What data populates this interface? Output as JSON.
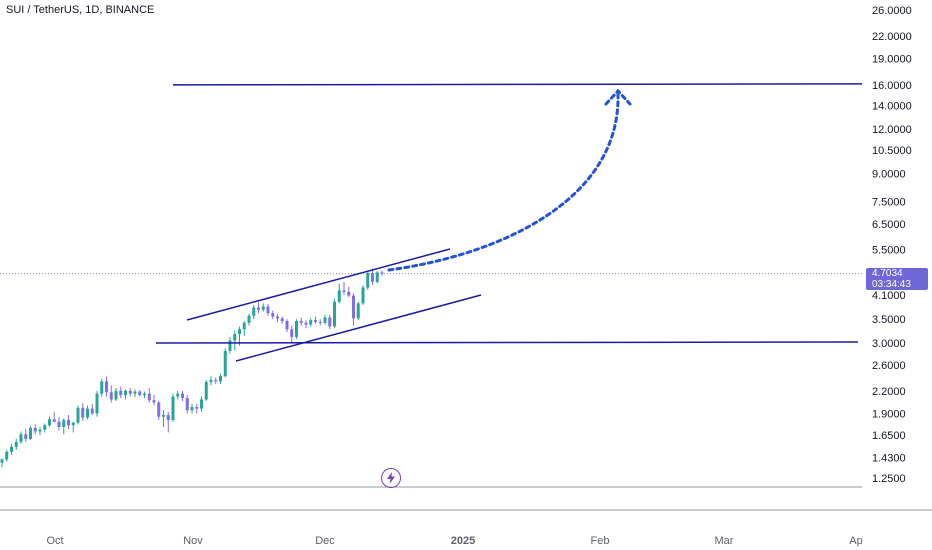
{
  "header": {
    "symbol_title": "SUI / TetherUS, 1D, BINANCE"
  },
  "price_badge": {
    "price": "4.7034",
    "countdown": "03:34:43"
  },
  "colors": {
    "up": "#26a69a",
    "down": "#7e6fe6",
    "drawing": "#1a1aa6",
    "projection": "#2454d6",
    "badge": "#6f67d8",
    "icon": "#7b3fb2"
  },
  "icons": {
    "replay": "lightning-icon"
  },
  "chart_data": {
    "type": "candlestick",
    "title": "SUI / TetherUS, 1D, BINANCE",
    "scale": "log",
    "ylim": [
      1.25,
      26.0
    ],
    "y_ticks": [
      "26.0000",
      "22.0000",
      "19.0000",
      "16.0000",
      "14.0000",
      "12.0000",
      "10.5000",
      "9.0000",
      "7.5000",
      "6.5000",
      "5.5000",
      "4.1000",
      "3.5000",
      "3.0000",
      "2.6000",
      "2.2000",
      "1.9000",
      "1.6500",
      "1.4300",
      "1.2500"
    ],
    "x_ticks": [
      "Oct",
      "Nov",
      "Dec",
      "2025",
      "Feb",
      "Mar",
      "Ap"
    ],
    "last_price": 4.7034,
    "series": [
      {
        "values": [
          [
            1.38,
            1.42,
            1.34,
            1.41
          ],
          [
            1.41,
            1.5,
            1.39,
            1.48
          ],
          [
            1.48,
            1.56,
            1.45,
            1.53
          ],
          [
            1.53,
            1.61,
            1.5,
            1.58
          ],
          [
            1.58,
            1.69,
            1.56,
            1.66
          ],
          [
            1.66,
            1.72,
            1.58,
            1.61
          ],
          [
            1.61,
            1.75,
            1.6,
            1.73
          ],
          [
            1.73,
            1.77,
            1.66,
            1.69
          ],
          [
            1.69,
            1.74,
            1.65,
            1.71
          ],
          [
            1.71,
            1.78,
            1.68,
            1.76
          ],
          [
            1.76,
            1.86,
            1.74,
            1.83
          ],
          [
            1.83,
            1.92,
            1.8,
            1.8
          ],
          [
            1.8,
            1.85,
            1.7,
            1.74
          ],
          [
            1.74,
            1.84,
            1.66,
            1.82
          ],
          [
            1.82,
            1.88,
            1.72,
            1.76
          ],
          [
            1.76,
            1.8,
            1.68,
            1.79
          ],
          [
            1.79,
            2.0,
            1.77,
            1.97
          ],
          [
            1.97,
            2.03,
            1.81,
            1.85
          ],
          [
            1.85,
            2.0,
            1.83,
            1.96
          ],
          [
            1.96,
            2.02,
            1.88,
            1.9
          ],
          [
            1.9,
            2.2,
            1.86,
            2.16
          ],
          [
            2.16,
            2.38,
            2.12,
            2.34
          ],
          [
            2.34,
            2.41,
            2.12,
            2.18
          ],
          [
            2.18,
            2.28,
            2.04,
            2.08
          ],
          [
            2.08,
            2.24,
            2.06,
            2.2
          ],
          [
            2.2,
            2.26,
            2.1,
            2.14
          ],
          [
            2.14,
            2.22,
            2.08,
            2.2
          ],
          [
            2.2,
            2.24,
            2.12,
            2.16
          ],
          [
            2.16,
            2.22,
            2.11,
            2.19
          ],
          [
            2.19,
            2.21,
            2.12,
            2.14
          ],
          [
            2.14,
            2.19,
            2.1,
            2.16
          ],
          [
            2.16,
            2.24,
            2.04,
            2.07
          ],
          [
            2.07,
            2.14,
            2.0,
            2.04
          ],
          [
            2.04,
            2.06,
            1.82,
            1.86
          ],
          [
            1.86,
            1.94,
            1.74,
            1.88
          ],
          [
            1.88,
            1.92,
            1.68,
            1.82
          ],
          [
            1.82,
            2.16,
            1.8,
            2.12
          ],
          [
            2.12,
            2.2,
            2.08,
            2.16
          ],
          [
            2.16,
            2.2,
            2.06,
            2.1
          ],
          [
            2.1,
            2.14,
            1.9,
            1.94
          ],
          [
            1.94,
            2.02,
            1.9,
            1.98
          ],
          [
            1.98,
            2.02,
            1.9,
            1.96
          ],
          [
            1.96,
            2.12,
            1.92,
            2.08
          ],
          [
            2.08,
            2.36,
            2.06,
            2.33
          ],
          [
            2.33,
            2.42,
            2.28,
            2.36
          ],
          [
            2.36,
            2.4,
            2.3,
            2.34
          ],
          [
            2.34,
            2.46,
            2.3,
            2.42
          ],
          [
            2.42,
            2.9,
            2.4,
            2.85
          ],
          [
            2.85,
            3.12,
            2.8,
            3.05
          ],
          [
            3.05,
            3.25,
            2.86,
            3.18
          ],
          [
            3.18,
            3.34,
            2.95,
            3.28
          ],
          [
            3.28,
            3.46,
            3.14,
            3.42
          ],
          [
            3.42,
            3.62,
            3.36,
            3.58
          ],
          [
            3.58,
            3.84,
            3.5,
            3.78
          ],
          [
            3.78,
            3.9,
            3.64,
            3.72
          ],
          [
            3.72,
            3.88,
            3.68,
            3.8
          ],
          [
            3.8,
            3.86,
            3.58,
            3.64
          ],
          [
            3.64,
            3.7,
            3.5,
            3.56
          ],
          [
            3.56,
            3.62,
            3.44,
            3.52
          ],
          [
            3.52,
            3.56,
            3.4,
            3.46
          ],
          [
            3.46,
            3.5,
            3.22,
            3.28
          ],
          [
            3.28,
            3.36,
            3.02,
            3.12
          ],
          [
            3.12,
            3.5,
            3.08,
            3.46
          ],
          [
            3.46,
            3.54,
            3.36,
            3.42
          ],
          [
            3.42,
            3.48,
            3.3,
            3.38
          ],
          [
            3.38,
            3.52,
            3.34,
            3.48
          ],
          [
            3.48,
            3.56,
            3.4,
            3.44
          ],
          [
            3.44,
            3.5,
            3.36,
            3.42
          ],
          [
            3.42,
            3.6,
            3.38,
            3.54
          ],
          [
            3.54,
            3.6,
            3.28,
            3.34
          ],
          [
            3.34,
            4.0,
            3.3,
            3.92
          ],
          [
            3.92,
            4.4,
            3.88,
            4.22
          ],
          [
            4.22,
            4.46,
            4.1,
            4.18
          ],
          [
            4.18,
            4.32,
            4.04,
            4.08
          ],
          [
            4.08,
            4.14,
            3.36,
            3.52
          ],
          [
            3.52,
            3.92,
            3.48,
            3.88
          ],
          [
            3.88,
            4.36,
            3.84,
            4.3
          ],
          [
            4.3,
            4.8,
            4.24,
            4.72
          ],
          [
            4.72,
            4.86,
            4.38,
            4.46
          ],
          [
            4.46,
            4.78,
            4.42,
            4.74
          ],
          [
            4.74,
            4.8,
            4.64,
            4.7
          ]
        ]
      }
    ],
    "annotations": {
      "horizontal_levels": [
        16.0,
        3.0
      ],
      "channel": "ascending parallel channel from Nov to mid-Dec",
      "projection": "dotted curved arrow from current price to 16.0000 level near Feb"
    }
  }
}
